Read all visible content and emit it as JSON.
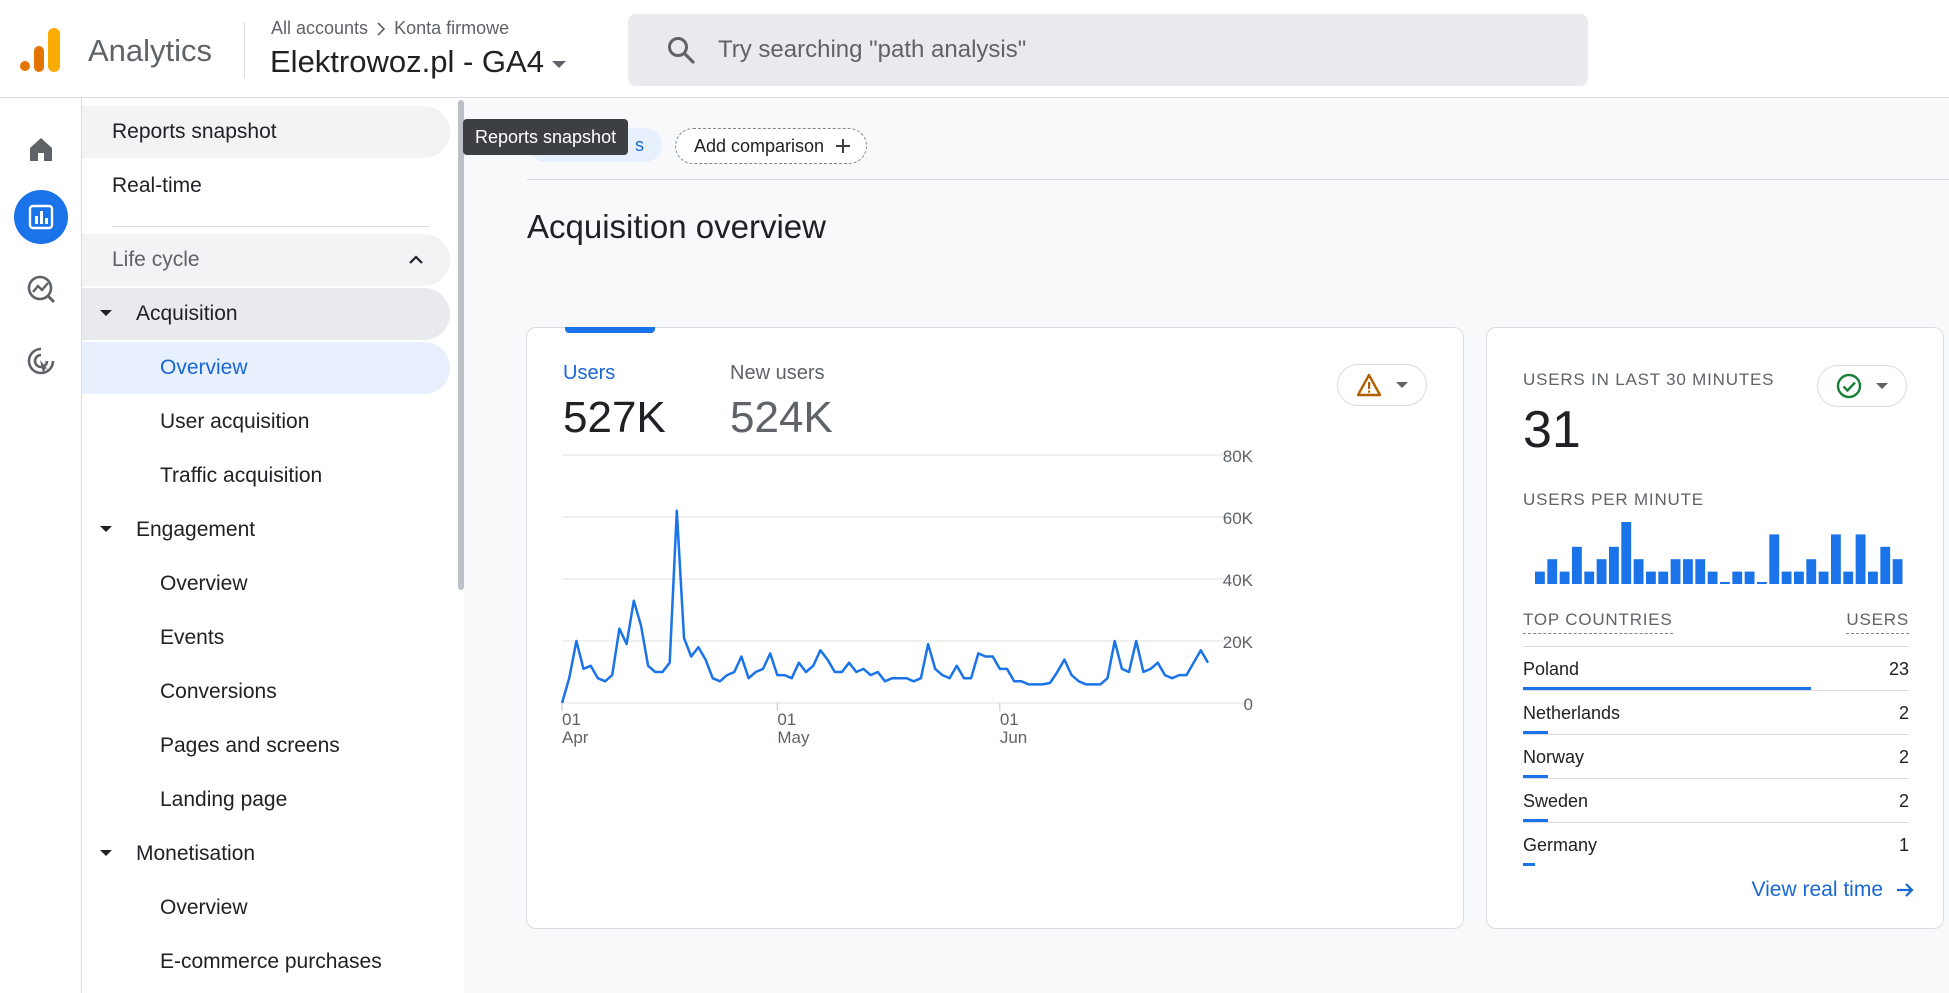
{
  "app": {
    "name": "Analytics"
  },
  "header": {
    "breadcrumb": [
      "All accounts",
      "Konta firmowe"
    ],
    "property": "Elektrowoz.pl - GA4",
    "search_placeholder": "Try searching \"path analysis\""
  },
  "rail": {
    "items": [
      "home-icon",
      "reports-icon",
      "explore-icon",
      "advertising-icon"
    ]
  },
  "nav": {
    "reports_snapshot": "Reports snapshot",
    "realtime": "Real-time",
    "lifecycle": "Life cycle",
    "acquisition": "Acquisition",
    "acq_overview": "Overview",
    "user_acquisition": "User acquisition",
    "traffic_acquisition": "Traffic acquisition",
    "engagement": "Engagement",
    "eng_overview": "Overview",
    "events": "Events",
    "conversions": "Conversions",
    "pages_screens": "Pages and screens",
    "landing_page": "Landing page",
    "monetisation": "Monetisation",
    "mon_overview": "Overview",
    "ecommerce": "E-commerce purchases"
  },
  "tooltip": "Reports snapshot",
  "chip_partial": "s",
  "add_comparison": "Add comparison",
  "page_title": "Acquisition overview",
  "metrics": {
    "users_label": "Users",
    "users_value": "527K",
    "new_users_label": "New users",
    "new_users_value": "524K"
  },
  "realtime": {
    "title": "USERS IN LAST 30 MINUTES",
    "value": "31",
    "per_minute_label": "USERS PER MINUTE",
    "per_minute": [
      1,
      2,
      1,
      3,
      1,
      2,
      3,
      5,
      2,
      1,
      1,
      2,
      2,
      2,
      1,
      0,
      1,
      1,
      0,
      4,
      1,
      1,
      2,
      1,
      4,
      1,
      4,
      1,
      3,
      2
    ],
    "countries_label": "TOP COUNTRIES",
    "users_label": "USERS",
    "countries": [
      {
        "name": "Poland",
        "users": "23",
        "share": 1.0
      },
      {
        "name": "Netherlands",
        "users": "2",
        "share": 0.087
      },
      {
        "name": "Norway",
        "users": "2",
        "share": 0.087
      },
      {
        "name": "Sweden",
        "users": "2",
        "share": 0.087
      },
      {
        "name": "Germany",
        "users": "1",
        "share": 0.043
      }
    ],
    "view_link": "View real time"
  },
  "colors": {
    "accent": "#1a73e8",
    "warning": "#b06000",
    "ok": "#188038"
  },
  "chart_data": {
    "type": "line",
    "ylim": [
      0,
      80000
    ],
    "yticks": [
      "80K",
      "60K",
      "40K",
      "20K",
      "0"
    ],
    "xticks": [
      {
        "day": "01",
        "month": "Apr"
      },
      {
        "day": "01",
        "month": "May"
      },
      {
        "day": "01",
        "month": "Jun"
      }
    ],
    "x_start": "2023-04-01",
    "x_end": "2023-06-30",
    "series": [
      {
        "name": "Users",
        "values": [
          0,
          8000,
          20000,
          11000,
          12000,
          8000,
          7000,
          9000,
          24000,
          19000,
          33000,
          25000,
          12000,
          10000,
          10000,
          13000,
          62000,
          21000,
          15000,
          18000,
          14000,
          8000,
          7000,
          9000,
          10000,
          15000,
          8000,
          10000,
          11000,
          16000,
          9000,
          9000,
          8000,
          13000,
          10000,
          12000,
          17000,
          14000,
          10000,
          10000,
          13000,
          10000,
          11000,
          9000,
          10000,
          7000,
          8000,
          8000,
          8000,
          7000,
          8000,
          19000,
          11000,
          9000,
          8000,
          12000,
          8000,
          8000,
          16000,
          15000,
          15000,
          11000,
          11000,
          7000,
          7000,
          6000,
          6000,
          6000,
          6500,
          10000,
          14000,
          9000,
          7000,
          6000,
          6000,
          6000,
          8000,
          20000,
          11000,
          10000,
          20000,
          10000,
          11000,
          13000,
          9000,
          8000,
          9000,
          9000,
          13000,
          17000,
          13000
        ]
      }
    ]
  }
}
